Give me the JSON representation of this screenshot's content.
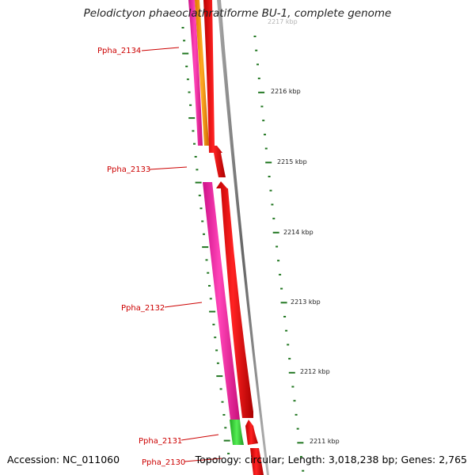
{
  "title": "Pelodictyon phaeoclathratiforme BU-1, complete genome",
  "footer": {
    "accession": "Accession: NC_011060",
    "summary": "Topology: circular; Length: 3,018,238 bp; Genes: 2,765"
  },
  "genes": [
    {
      "name": "Ppha_2134"
    },
    {
      "name": "Ppha_2133"
    },
    {
      "name": "Ppha_2132"
    },
    {
      "name": "Ppha_2131"
    },
    {
      "name": "Ppha_2130"
    }
  ],
  "ticks": [
    {
      "label": "2217 kbp"
    },
    {
      "label": "2216 kbp"
    },
    {
      "label": "2215 kbp"
    },
    {
      "label": "2214 kbp"
    },
    {
      "label": "2213 kbp"
    },
    {
      "label": "2212 kbp"
    },
    {
      "label": "2211 kbp"
    }
  ],
  "colors": {
    "cds": "#ff0000",
    "magenta": "#ff2ca4",
    "orange": "#ff9900",
    "green": "#33cc33",
    "backbone": "#888888",
    "tick": "#227722",
    "label": "#cc0000"
  }
}
